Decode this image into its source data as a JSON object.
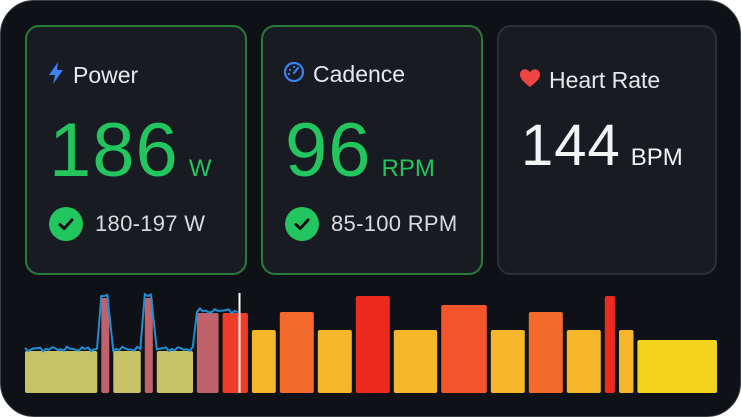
{
  "power": {
    "label": "Power",
    "value": "186",
    "unit": "W",
    "range": "180-197 W",
    "icon": "lightning-icon"
  },
  "cadence": {
    "label": "Cadence",
    "value": "96",
    "unit": "RPM",
    "range": "85-100 RPM",
    "icon": "speedometer-icon"
  },
  "heart_rate": {
    "label": "Heart Rate",
    "value": "144",
    "unit": "BPM",
    "icon": "heart-icon"
  },
  "colors": {
    "in_range": "#22c55e",
    "power_icon": "#3b82f6",
    "heart": "#ef4444",
    "power_trace": "#1d8fd6",
    "position_marker": "#ffffff"
  },
  "chart_data": {
    "type": "bar",
    "title": "",
    "xlabel": "",
    "ylabel": "",
    "elapsed_fraction": 0.31,
    "intervals": [
      {
        "duration": 1.0,
        "intensity": 0.42,
        "color": "#c7c167"
      },
      {
        "duration": 0.11,
        "intensity": 0.95,
        "color": "#c0626b"
      },
      {
        "duration": 0.38,
        "intensity": 0.42,
        "color": "#c7c167"
      },
      {
        "duration": 0.11,
        "intensity": 0.95,
        "color": "#c0626b"
      },
      {
        "duration": 0.5,
        "intensity": 0.42,
        "color": "#c7c167"
      },
      {
        "duration": 0.3,
        "intensity": 0.8,
        "color": "#c0626b"
      },
      {
        "duration": 0.35,
        "intensity": 0.8,
        "color": "#ee3d27"
      },
      {
        "duration": 0.33,
        "intensity": 0.63,
        "color": "#f6b62c"
      },
      {
        "duration": 0.47,
        "intensity": 0.81,
        "color": "#f36a2c"
      },
      {
        "duration": 0.47,
        "intensity": 0.63,
        "color": "#f6b62c"
      },
      {
        "duration": 0.47,
        "intensity": 0.97,
        "color": "#ee2a1e"
      },
      {
        "duration": 0.6,
        "intensity": 0.63,
        "color": "#f6b62c"
      },
      {
        "duration": 0.63,
        "intensity": 0.88,
        "color": "#f4552c"
      },
      {
        "duration": 0.47,
        "intensity": 0.63,
        "color": "#f6b62c"
      },
      {
        "duration": 0.47,
        "intensity": 0.81,
        "color": "#f36a2c"
      },
      {
        "duration": 0.47,
        "intensity": 0.63,
        "color": "#f6b62c"
      },
      {
        "duration": 0.14,
        "intensity": 0.97,
        "color": "#ee2a1e"
      },
      {
        "duration": 0.2,
        "intensity": 0.63,
        "color": "#f6b62c"
      },
      {
        "duration": 1.1,
        "intensity": 0.53,
        "color": "#f2d21a"
      }
    ]
  }
}
